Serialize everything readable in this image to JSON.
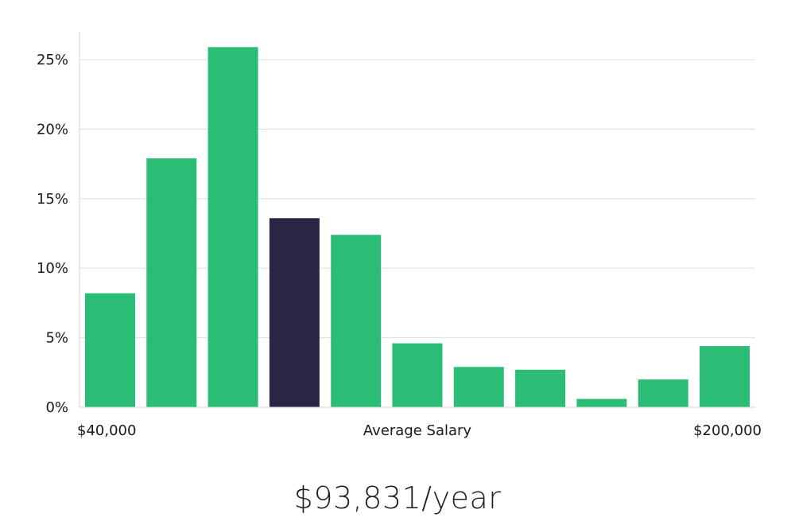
{
  "chart_data": {
    "type": "bar",
    "title": "",
    "xlabel": "Average Salary",
    "ylabel": "",
    "x_min_label": "$40,000",
    "x_max_label": "$200,000",
    "ylim": [
      0,
      27
    ],
    "yticks": [
      0,
      5,
      10,
      15,
      20,
      25
    ],
    "ytick_labels": [
      "0%",
      "5%",
      "10%",
      "15%",
      "20%",
      "25%"
    ],
    "values": [
      8.2,
      17.9,
      25.9,
      13.6,
      12.4,
      4.6,
      2.9,
      2.7,
      0.6,
      2.0,
      4.4
    ],
    "highlight_index": 3,
    "colors": {
      "bar": "#2bbd76",
      "highlight": "#2a2545"
    },
    "grid": true
  },
  "footer": {
    "salary_text": "$93,831/year"
  }
}
